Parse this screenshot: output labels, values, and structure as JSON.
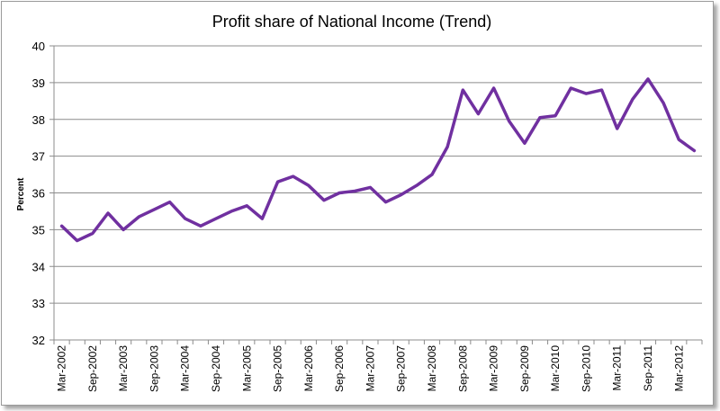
{
  "chart_data": {
    "type": "line",
    "title": "Profit share of National Income (Trend)",
    "xlabel": "",
    "ylabel": "Percent",
    "ylim": [
      32,
      40
    ],
    "yticks": [
      "32",
      "33",
      "34",
      "35",
      "36",
      "37",
      "38",
      "39",
      "40"
    ],
    "grid": "horizontal",
    "legend": "none",
    "line_color": "#7030A0",
    "x": [
      "Mar-2002",
      "Jun-2002",
      "Sep-2002",
      "Dec-2002",
      "Mar-2003",
      "Jun-2003",
      "Sep-2003",
      "Dec-2003",
      "Mar-2004",
      "Jun-2004",
      "Sep-2004",
      "Dec-2004",
      "Mar-2005",
      "Jun-2005",
      "Sep-2005",
      "Dec-2005",
      "Mar-2006",
      "Jun-2006",
      "Sep-2006",
      "Dec-2006",
      "Mar-2007",
      "Jun-2007",
      "Sep-2007",
      "Dec-2007",
      "Mar-2008",
      "Jun-2008",
      "Sep-2008",
      "Dec-2008",
      "Mar-2009",
      "Jun-2009",
      "Sep-2009",
      "Dec-2009",
      "Mar-2010",
      "Jun-2010",
      "Sep-2010",
      "Dec-2010",
      "Mar-2011",
      "Jun-2011",
      "Sep-2011",
      "Dec-2011",
      "Mar-2012",
      "Jun-2012"
    ],
    "x_tick_labels": [
      "Mar-2002",
      "Sep-2002",
      "Mar-2003",
      "Sep-2003",
      "Mar-2004",
      "Sep-2004",
      "Mar-2005",
      "Sep-2005",
      "Mar-2006",
      "Sep-2006",
      "Mar-2007",
      "Sep-2007",
      "Mar-2008",
      "Sep-2008",
      "Mar-2009",
      "Sep-2009",
      "Mar-2010",
      "Sep-2010",
      "Mar-2011",
      "Sep-2011",
      "Mar-2012"
    ],
    "values": [
      35.1,
      34.7,
      34.9,
      35.45,
      35.0,
      35.35,
      35.55,
      35.75,
      35.3,
      35.1,
      35.3,
      35.5,
      35.65,
      35.3,
      36.3,
      36.45,
      36.2,
      35.8,
      36.0,
      36.05,
      36.15,
      35.75,
      35.95,
      36.2,
      36.5,
      37.25,
      38.8,
      38.15,
      38.85,
      37.95,
      37.35,
      38.05,
      38.1,
      38.85,
      38.7,
      38.8,
      37.75,
      38.55,
      39.1,
      38.45,
      37.45,
      37.15
    ]
  }
}
